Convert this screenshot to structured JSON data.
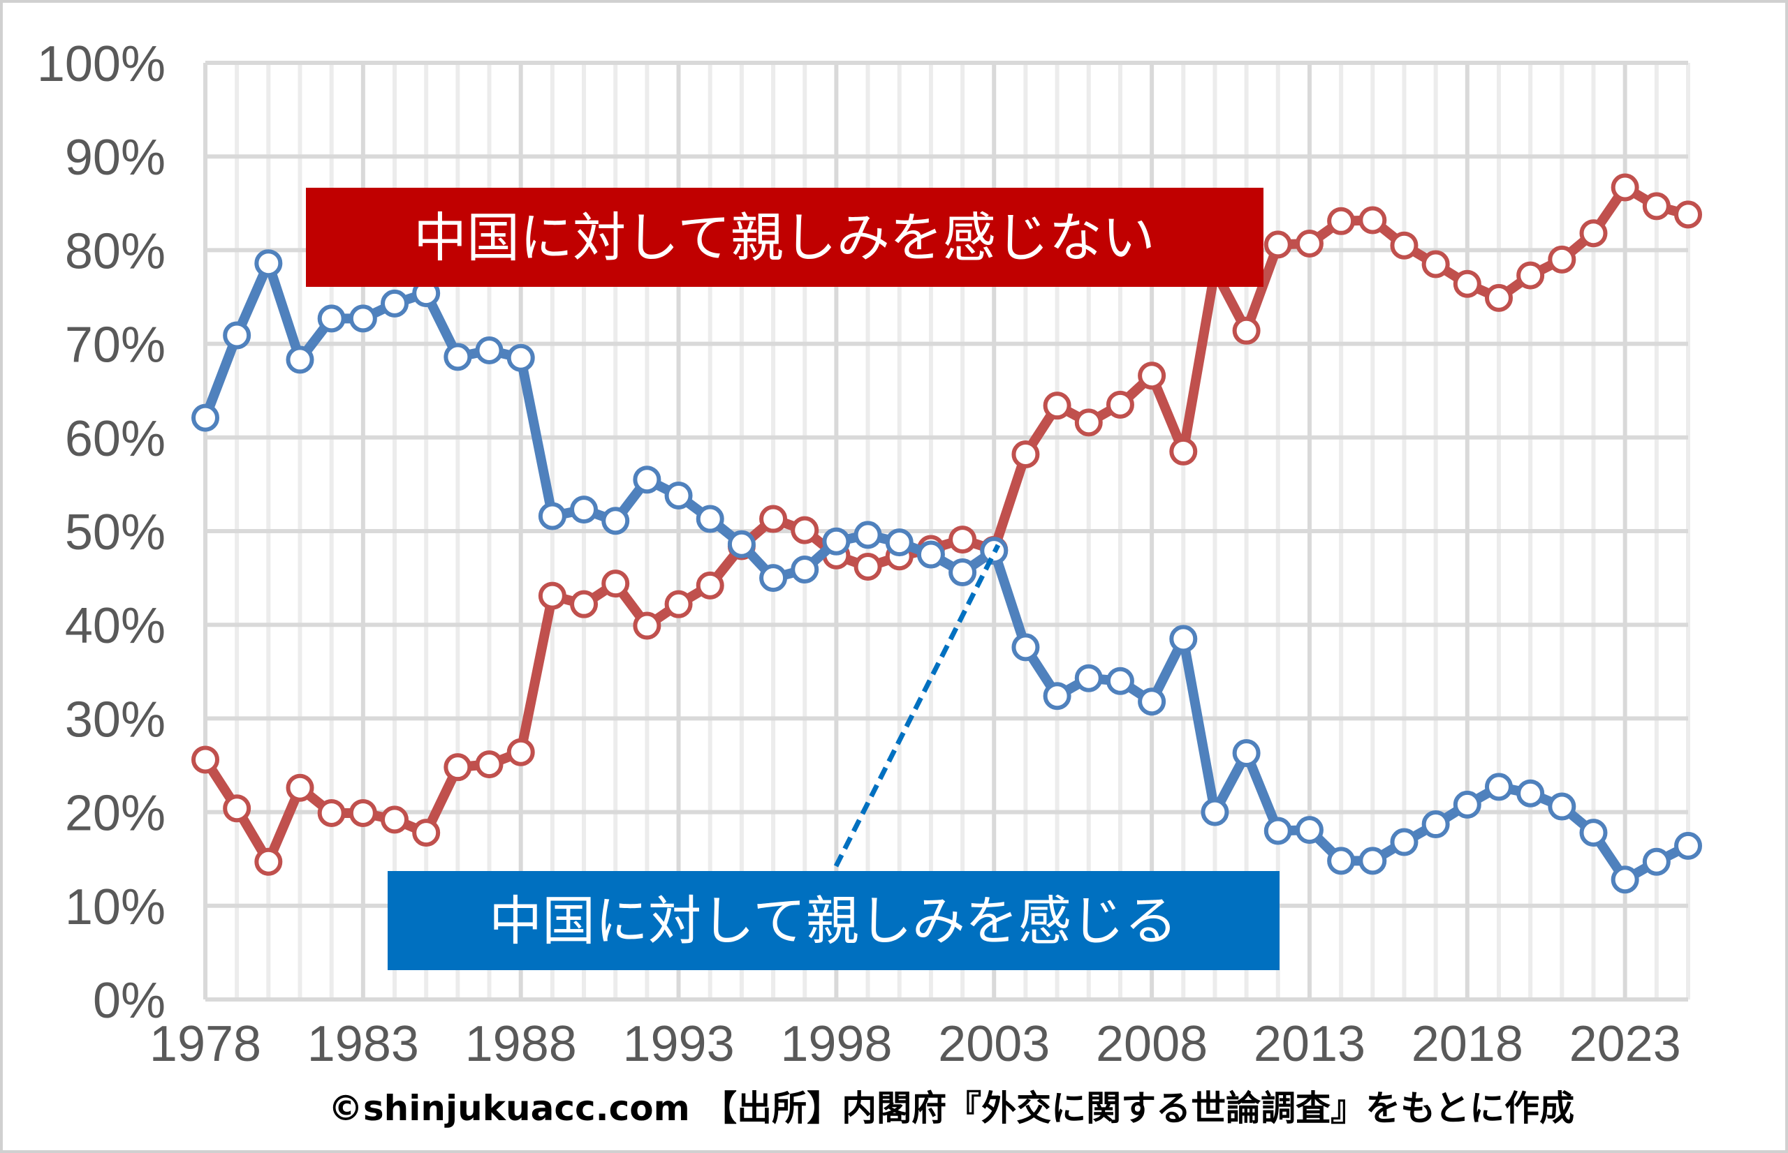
{
  "chart_data": {
    "type": "line",
    "title": "",
    "xlabel": "",
    "ylabel": "",
    "ylim": [
      0,
      100
    ],
    "xlim": [
      1978,
      2025
    ],
    "grid": true,
    "y_ticks": [
      "0%",
      "10%",
      "20%",
      "30%",
      "40%",
      "50%",
      "60%",
      "70%",
      "80%",
      "90%",
      "100%"
    ],
    "x_ticks": [
      "1978",
      "1983",
      "1988",
      "1993",
      "1998",
      "2003",
      "2008",
      "2013",
      "2018",
      "2023"
    ],
    "x": [
      1978,
      1979,
      1980,
      1981,
      1982,
      1983,
      1984,
      1985,
      1986,
      1987,
      1988,
      1989,
      1990,
      1991,
      1992,
      1993,
      1994,
      1995,
      1996,
      1997,
      1998,
      1999,
      2000,
      2001,
      2002,
      2003,
      2004,
      2005,
      2006,
      2007,
      2008,
      2009,
      2010,
      2011,
      2012,
      2013,
      2014,
      2015,
      2016,
      2017,
      2018,
      2019,
      2020,
      2021,
      2022,
      2023,
      2024,
      2025
    ],
    "series": [
      {
        "name": "中国に対して親しみを感じない",
        "color": "#c0504d",
        "label_bg": "#c00000",
        "values": [
          25.6,
          20.4,
          14.7,
          22.6,
          19.9,
          19.9,
          19.2,
          17.8,
          24.8,
          25.1,
          26.4,
          43.1,
          42.2,
          44.4,
          39.9,
          42.2,
          44.2,
          48.4,
          51.3,
          50.1,
          47.4,
          46.2,
          47.3,
          48.1,
          49.1,
          48.0,
          58.2,
          63.4,
          61.6,
          63.5,
          66.6,
          58.5,
          77.8,
          71.4,
          80.6,
          80.7,
          83.1,
          83.2,
          80.5,
          78.5,
          76.4,
          74.9,
          77.3,
          79.0,
          81.8,
          86.7,
          84.7,
          83.8
        ]
      },
      {
        "name": "中国に対して親しみを感じる",
        "color": "#4f81bd",
        "label_bg": "#0070c0",
        "values": [
          62.1,
          70.9,
          78.6,
          68.3,
          72.7,
          72.7,
          74.3,
          75.4,
          68.6,
          69.3,
          68.5,
          51.6,
          52.3,
          51.1,
          55.5,
          53.8,
          51.3,
          48.6,
          45.0,
          45.9,
          48.9,
          49.6,
          48.8,
          47.5,
          45.6,
          47.9,
          37.6,
          32.4,
          34.3,
          34.0,
          31.8,
          38.5,
          20.0,
          26.3,
          18.0,
          18.1,
          14.8,
          14.8,
          16.8,
          18.7,
          20.8,
          22.7,
          22.0,
          20.6,
          17.8,
          12.8,
          14.7,
          16.4
        ]
      }
    ],
    "footer": "©shinjukuacc.com 【出所】内閣府『外交に関する世論調査』をもとに作成"
  }
}
